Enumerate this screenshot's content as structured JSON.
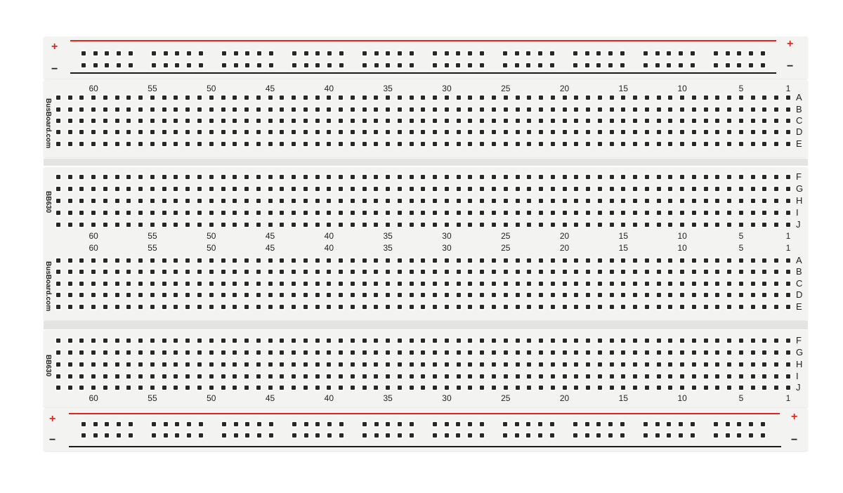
{
  "breadboard": {
    "brand": "BusBoard.com",
    "model": "BB630",
    "rail_plus": "+",
    "rail_minus": "−",
    "column_labels": [
      "60",
      "55",
      "50",
      "45",
      "40",
      "35",
      "30",
      "25",
      "20",
      "15",
      "10",
      "5",
      "1"
    ],
    "rows_top": [
      "A",
      "B",
      "C",
      "D",
      "E"
    ],
    "rows_bottom": [
      "F",
      "G",
      "H",
      "I",
      "J"
    ],
    "colors": {
      "positive_rail": "#e8231c",
      "negative_rail": "#1a1a1a",
      "board": "#f3f3f1",
      "hole": "#2a2620"
    }
  }
}
